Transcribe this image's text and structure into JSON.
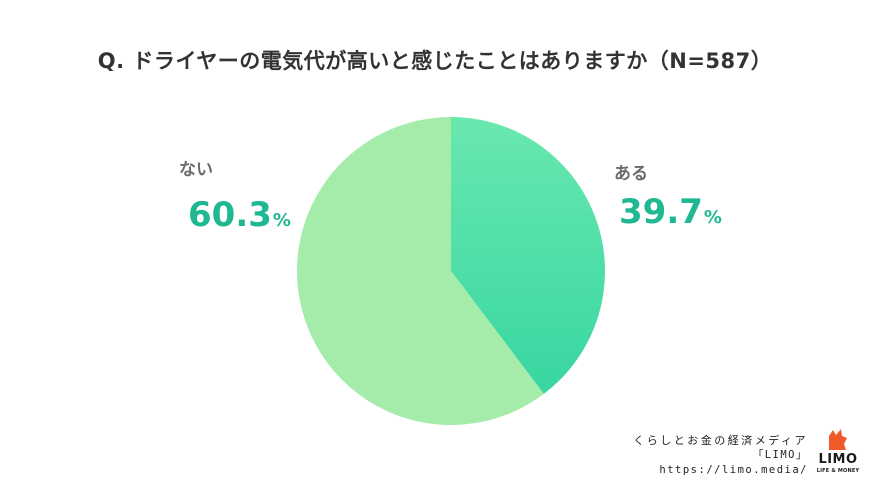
{
  "chart_data": {
    "type": "pie",
    "title": "Q. ドライヤーの電気代が高いと感じたことはありますか（N=587）",
    "slices": [
      {
        "label": "ある",
        "value": 39.7,
        "display": "39.7",
        "unit": "%",
        "color": "#4ddba8"
      },
      {
        "label": "ない",
        "value": 60.3,
        "display": "60.3",
        "unit": "%",
        "color": "#a5ecab"
      }
    ]
  },
  "footer": {
    "tagline": "くらしとお金の経済メディア",
    "name": "「LIMO」",
    "url": "https://limo.media/"
  },
  "logo": {
    "text": "LIMO",
    "subtext": "LIFE & MONEY",
    "color": "#f05a28"
  }
}
